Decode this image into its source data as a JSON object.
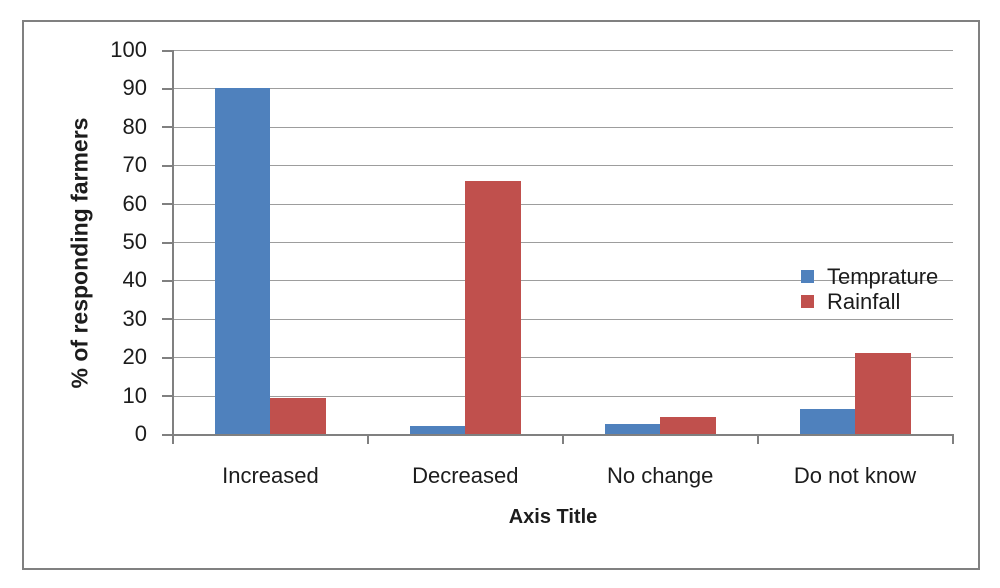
{
  "figure": {
    "background": "#ffffff",
    "border_color": "#808080"
  },
  "chart_data": {
    "type": "bar",
    "title": "",
    "categories": [
      "Increased",
      "Decreased",
      "No change",
      "Do not know"
    ],
    "series": [
      {
        "name": "Temprature",
        "color": "#4f81bd",
        "values": [
          90,
          2,
          2.5,
          6.5
        ]
      },
      {
        "name": "Rainfall",
        "color": "#c0504d",
        "values": [
          9.5,
          66,
          4.5,
          21
        ]
      }
    ],
    "xlabel": "Axis Title",
    "ylabel": "% of responding farmers",
    "ylim": [
      0,
      100
    ],
    "ytick_step": 10,
    "ytick_labels": [
      "0",
      "10",
      "20",
      "30",
      "40",
      "50",
      "60",
      "70",
      "80",
      "90",
      "100"
    ],
    "grid": true,
    "legend_position": "right-middle",
    "gridline_color": "#9d9d9d",
    "axis_color": "#808080",
    "text_color": "#1c1c1c"
  }
}
